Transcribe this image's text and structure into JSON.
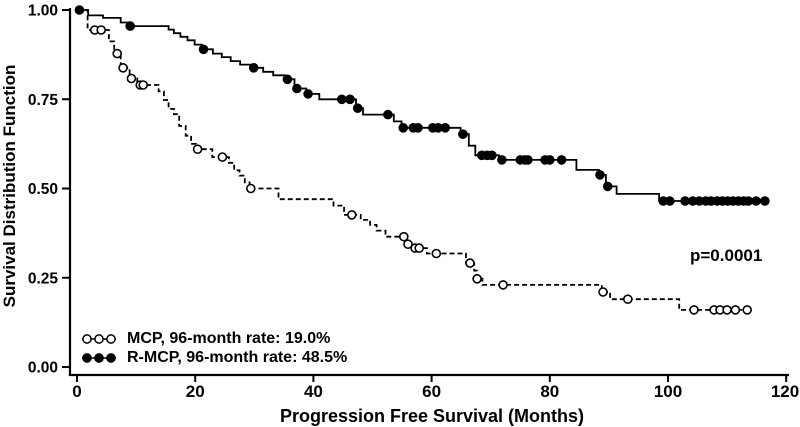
{
  "figure": {
    "background": "#ffffff",
    "foreground": "#000000"
  },
  "chart_data": {
    "type": "line",
    "subtype": "kaplan_meier_step_function",
    "title": "",
    "xlabel": "Progression Free Survival (Months)",
    "ylabel": "Survival Distribution Function",
    "xlim": [
      0,
      120
    ],
    "ylim": [
      0.0,
      1.0
    ],
    "grid": false,
    "legend_position": "inside-bottom-left",
    "annotation": "p=0.0001",
    "xticks": [
      {
        "value": 0,
        "label": "0"
      },
      {
        "value": 20,
        "label": "20"
      },
      {
        "value": 40,
        "label": "40"
      },
      {
        "value": 60,
        "label": "60"
      },
      {
        "value": 80,
        "label": "80"
      },
      {
        "value": 100,
        "label": "100"
      },
      {
        "value": 120,
        "label": "120"
      }
    ],
    "yticks": [
      {
        "value": 1.0,
        "label": "1.00"
      },
      {
        "value": 0.75,
        "label": "0.75"
      },
      {
        "value": 0.5,
        "label": "0.50"
      },
      {
        "value": 0.25,
        "label": "0.25"
      },
      {
        "value": 0.0,
        "label": "0.00"
      }
    ],
    "legend": [
      {
        "label": "MCP, 96-month rate: 19.0%",
        "marker": "open-circle",
        "line": "dashed"
      },
      {
        "label": "R-MCP, 96-month rate: 48.5%",
        "marker": "filled-circle",
        "line": "solid"
      }
    ],
    "series": [
      {
        "name": "MCP",
        "line": "dashed",
        "marker": "open-circle",
        "rate_96_month": "19.0%",
        "steps": [
          [
            0,
            1.0
          ],
          [
            1.8,
            0.944
          ],
          [
            5.4,
            0.912
          ],
          [
            6.3,
            0.878
          ],
          [
            7.4,
            0.838
          ],
          [
            8.9,
            0.808
          ],
          [
            10.2,
            0.79
          ],
          [
            13.8,
            0.772
          ],
          [
            14.7,
            0.748
          ],
          [
            15.5,
            0.723
          ],
          [
            16.4,
            0.708
          ],
          [
            17.3,
            0.675
          ],
          [
            18.4,
            0.648
          ],
          [
            19.3,
            0.625
          ],
          [
            20.1,
            0.61
          ],
          [
            22.9,
            0.588
          ],
          [
            25.7,
            0.572
          ],
          [
            26.6,
            0.551
          ],
          [
            27.5,
            0.536
          ],
          [
            28.4,
            0.517
          ],
          [
            29.2,
            0.5
          ],
          [
            34.1,
            0.47
          ],
          [
            43.4,
            0.452
          ],
          [
            45.2,
            0.426
          ],
          [
            48.0,
            0.412
          ],
          [
            49.6,
            0.398
          ],
          [
            50.7,
            0.382
          ],
          [
            52.2,
            0.365
          ],
          [
            55.7,
            0.344
          ],
          [
            56.6,
            0.333
          ],
          [
            59.2,
            0.318
          ],
          [
            65.8,
            0.291
          ],
          [
            67.2,
            0.27
          ],
          [
            67.7,
            0.247
          ],
          [
            68.6,
            0.23
          ],
          [
            88.8,
            0.21
          ],
          [
            90.2,
            0.19
          ],
          [
            101.9,
            0.16
          ]
        ],
        "end_month": 113.9,
        "censor_months": [
          3.0,
          4.1,
          6.8,
          7.8,
          9.2,
          10.7,
          11.2,
          20.4,
          24.6,
          29.4,
          46.5,
          55.3,
          56.0,
          57.2,
          57.9,
          60.8,
          66.5,
          67.7,
          72.1,
          89.0,
          93.2,
          104.4,
          107.8,
          108.8,
          110.0,
          111.4,
          113.4
        ]
      },
      {
        "name": "R-MCP",
        "line": "solid",
        "marker": "filled-circle",
        "rate_96_month": "48.5%",
        "steps": [
          [
            0,
            1.0
          ],
          [
            1.9,
            0.985
          ],
          [
            4.4,
            0.978
          ],
          [
            7.4,
            0.965
          ],
          [
            8.9,
            0.955
          ],
          [
            15.5,
            0.945
          ],
          [
            16.4,
            0.935
          ],
          [
            17.5,
            0.925
          ],
          [
            18.7,
            0.915
          ],
          [
            19.9,
            0.903
          ],
          [
            21.1,
            0.89
          ],
          [
            23.0,
            0.878
          ],
          [
            24.5,
            0.868
          ],
          [
            26.0,
            0.857
          ],
          [
            27.6,
            0.847
          ],
          [
            29.4,
            0.838
          ],
          [
            31.5,
            0.827
          ],
          [
            33.2,
            0.817
          ],
          [
            35.2,
            0.806
          ],
          [
            36.8,
            0.78
          ],
          [
            38.8,
            0.765
          ],
          [
            41.0,
            0.75
          ],
          [
            47.2,
            0.725
          ],
          [
            48.4,
            0.707
          ],
          [
            53.6,
            0.688
          ],
          [
            54.9,
            0.67
          ],
          [
            64.9,
            0.652
          ],
          [
            66.3,
            0.62
          ],
          [
            67.4,
            0.593
          ],
          [
            71.4,
            0.58
          ],
          [
            84.5,
            0.552
          ],
          [
            88.3,
            0.538
          ],
          [
            89.5,
            0.506
          ],
          [
            91.3,
            0.485
          ],
          [
            98.5,
            0.465
          ]
        ],
        "end_month": 117.0,
        "censor_months": [
          0.4,
          9.0,
          21.4,
          29.9,
          35.6,
          37.2,
          39.1,
          44.8,
          46.2,
          47.5,
          52.6,
          55.2,
          56.9,
          57.7,
          60.2,
          61.1,
          62.3,
          65.3,
          68.5,
          69.4,
          70.2,
          71.9,
          75.0,
          75.8,
          76.3,
          79.2,
          80.0,
          82.0,
          88.5,
          89.8,
          99.2,
          100.3,
          102.9,
          104.2,
          105.3,
          106.4,
          107.3,
          108.3,
          109.2,
          110.1,
          111.0,
          111.9,
          112.8,
          113.6,
          114.9,
          116.4
        ]
      }
    ]
  }
}
